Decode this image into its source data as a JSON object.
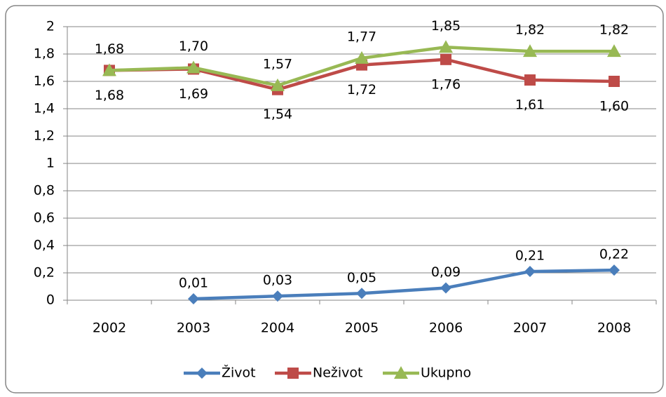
{
  "chart_data": {
    "type": "line",
    "categories": [
      "2002",
      "2003",
      "2004",
      "2005",
      "2006",
      "2007",
      "2008"
    ],
    "series": [
      {
        "name": "Život",
        "color": "#4a7ebb",
        "marker": "diamond",
        "values": [
          null,
          0.01,
          0.03,
          0.05,
          0.09,
          0.21,
          0.22
        ],
        "value_labels": [
          null,
          "0,01",
          "0,03",
          "0,05",
          "0,09",
          "0,21",
          "0,22"
        ]
      },
      {
        "name": "Neživot",
        "color": "#be4b48",
        "marker": "square",
        "values": [
          1.68,
          1.69,
          1.54,
          1.72,
          1.76,
          1.61,
          1.6
        ],
        "value_labels": [
          "1,68",
          "1,69",
          "1,54",
          "1,72",
          "1,76",
          "1,61",
          "1,60"
        ]
      },
      {
        "name": "Ukupno",
        "color": "#98b954",
        "marker": "triangle",
        "values": [
          1.68,
          1.7,
          1.57,
          1.77,
          1.85,
          1.82,
          1.82
        ],
        "value_labels": [
          "1,68",
          "1,70",
          "1,57",
          "1,77",
          "1,85",
          "1,82",
          "1,82"
        ]
      }
    ],
    "ylim": [
      0,
      2
    ],
    "yticks": [
      0,
      {
        "value": 0.2,
        "label": "0,2"
      },
      {
        "value": 0.4,
        "label": "0,4"
      },
      {
        "value": 0.6,
        "label": "0,6"
      },
      {
        "value": 0.8,
        "label": "0,8"
      },
      1,
      {
        "value": 1.2,
        "label": "1,2"
      },
      {
        "value": 1.4,
        "label": "1,4"
      },
      {
        "value": 1.6,
        "label": "1,6"
      },
      {
        "value": 1.8,
        "label": "1,8"
      },
      2
    ],
    "grid": true,
    "legend": "bottom"
  }
}
